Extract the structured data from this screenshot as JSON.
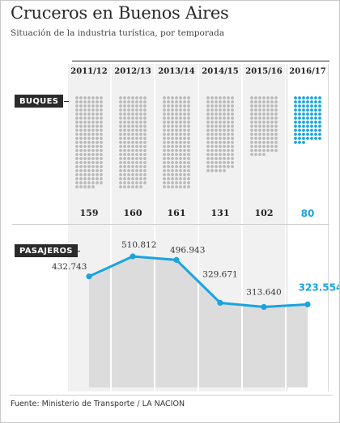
{
  "title": "Cruceros en Buenos Aires",
  "subtitle": "Situación de la industria turística, por temporada",
  "sections": {
    "ships_label": "BUQUES",
    "passengers_label": "PASAJEROS"
  },
  "footer": "Fuente: Ministerio de Transporte / LA NACION",
  "colors": {
    "dot": "#b9b9b9",
    "highlight": "#1aa3e0",
    "area": "#dcdcdc",
    "line": "#1aa3e0",
    "column_bg": "#f1f1f1"
  },
  "chart_data": [
    {
      "type": "bar",
      "chart": "dot-matrix",
      "categories": [
        "2011/12",
        "2012/13",
        "2013/14",
        "2014/15",
        "2015/16",
        "2016/17"
      ],
      "series": [
        {
          "name": "BUQUES",
          "values": [
            159,
            160,
            161,
            131,
            102,
            80
          ]
        }
      ],
      "highlight_category": "2016/17",
      "grid": false
    },
    {
      "type": "area",
      "categories": [
        "2011/12",
        "2012/13",
        "2013/14",
        "2014/15",
        "2015/16",
        "2016/17"
      ],
      "series": [
        {
          "name": "PASAJEROS",
          "values": [
            432743,
            510812,
            496943,
            329671,
            313640,
            323554
          ],
          "labels": [
            "432.743",
            "510.812",
            "496.943",
            "329.671",
            "313.640",
            "323.554"
          ]
        }
      ],
      "highlight_category": "2016/17",
      "grid": false
    }
  ]
}
